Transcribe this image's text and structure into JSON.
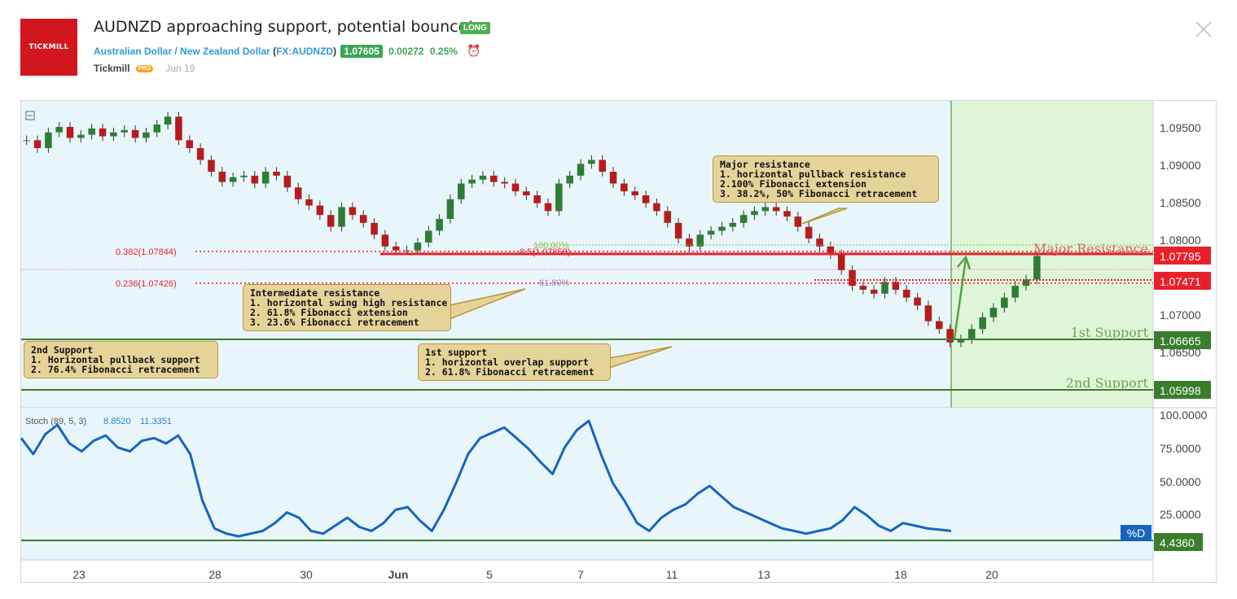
{
  "header": {
    "logo_text": "TICKMILL",
    "title": "AUDNZD approaching support, potential bounce!",
    "badge": "LONG",
    "symbol_name": "Australian Dollar / New Zealand Dollar",
    "symbol_code": "FX:AUDNZD",
    "price": "1.07605",
    "change": "0.00272",
    "change_pct": "0.25%",
    "author": "Tickmill",
    "author_badge": "PRO",
    "date": "Jun 19"
  },
  "colors": {
    "resistance": "#e8202a",
    "support": "#3a7d2c",
    "stoch_line": "#1565c0",
    "long_zone": "#dff5d8",
    "chart_bg": "#e8f6fb",
    "note_bg": "#e6d39a"
  },
  "chart_data": [
    {
      "type": "candlestick",
      "x_ticks": [
        "23",
        "28",
        "30",
        "Jun",
        "5",
        "7",
        "11",
        "13",
        "18",
        "20"
      ],
      "y_ticks": [
        "1.09500",
        "1.09000",
        "1.08500",
        "1.08000",
        "1.07000",
        "1.06500"
      ],
      "ylim": [
        1.0585,
        1.0975
      ],
      "close_series": [
        1.0925,
        1.0915,
        1.0935,
        1.0942,
        1.0928,
        1.0932,
        1.094,
        1.093,
        1.0935,
        1.0938,
        1.0928,
        1.0935,
        1.0945,
        1.0955,
        1.0925,
        1.0915,
        1.09,
        1.0885,
        1.0872,
        1.0878,
        1.088,
        1.087,
        1.0885,
        1.088,
        1.0865,
        1.085,
        1.0842,
        1.083,
        1.0815,
        1.084,
        1.083,
        1.082,
        1.0805,
        1.079,
        1.0785,
        1.0785,
        1.0795,
        1.081,
        1.0825,
        1.085,
        1.087,
        1.0875,
        1.088,
        1.0872,
        1.087,
        1.086,
        1.0855,
        1.0845,
        1.0835,
        1.087,
        1.088,
        1.0895,
        1.09,
        1.0885,
        1.087,
        1.086,
        1.0855,
        1.0845,
        1.0835,
        1.082,
        1.08,
        1.079,
        1.0805,
        1.081,
        1.0815,
        1.082,
        1.083,
        1.0835,
        1.084,
        1.0835,
        1.0828,
        1.0815,
        1.08,
        1.079,
        1.078,
        1.076,
        1.074,
        1.0735,
        1.073,
        1.0745,
        1.0735,
        1.0725,
        1.0715,
        1.0695,
        1.0685,
        1.0668,
        1.0672,
        1.0685,
        1.07,
        1.0712,
        1.0725,
        1.074,
        1.0748,
        1.0778
      ],
      "levels": [
        {
          "label": "Major Resistance",
          "price_label": "1.07795",
          "kind": "resistance"
        },
        {
          "label": "",
          "price_label": "1.07471",
          "kind": "resistance"
        },
        {
          "label": "1st Support",
          "price_label": "1.06665",
          "kind": "support"
        },
        {
          "label": "2nd Support",
          "price_label": "1.05998",
          "kind": "support"
        }
      ],
      "fib_labels": {
        "f0382": "0.382(1.07844)",
        "f0236": "0.236(1.07426)",
        "f05": "0.5(1.07858)",
        "f100": "100.00%",
        "f618": "61.80%"
      }
    },
    {
      "type": "line",
      "title": "Stoch (89, 5, 3)",
      "value1": "8.8520",
      "value2": "11.3351",
      "y_ticks": [
        "100.0000",
        "75.0000",
        "50.0000",
        "25.0000"
      ],
      "ylim": [
        0,
        100
      ],
      "values": [
        82,
        70,
        85,
        92,
        78,
        72,
        80,
        84,
        75,
        72,
        80,
        82,
        78,
        84,
        70,
        35,
        14,
        10,
        8,
        10,
        12,
        18,
        26,
        22,
        12,
        10,
        16,
        22,
        15,
        12,
        18,
        28,
        30,
        20,
        12,
        28,
        48,
        70,
        82,
        86,
        90,
        82,
        74,
        64,
        55,
        75,
        88,
        95,
        70,
        48,
        34,
        18,
        12,
        22,
        28,
        32,
        40,
        46,
        38,
        30,
        26,
        22,
        18,
        14,
        12,
        10,
        12,
        14,
        20,
        30,
        24,
        16,
        12,
        18,
        16,
        14,
        13,
        12
      ],
      "last_value": "4.4360",
      "pct_d_label": "%D"
    }
  ],
  "annotations": {
    "major_resistance": "Major resistance\n1. horizontal pullback resistance\n2.100% Fibonacci extension\n3. 38.2%, 50% Fibonacci retracement",
    "intermediate_resistance": "Intermediate resistance\n1. horizontal swing high resistance\n2. 61.8% Fibonacci extension\n3. 23.6% Fibonacci retracement",
    "first_support": "1st support\n1. horizontal overlap support\n2. 61.8% Fibonacci retracement",
    "second_support": "2nd Support\n1. Horizontal pullback support\n2. 76.4% Fibonacci retracement"
  }
}
